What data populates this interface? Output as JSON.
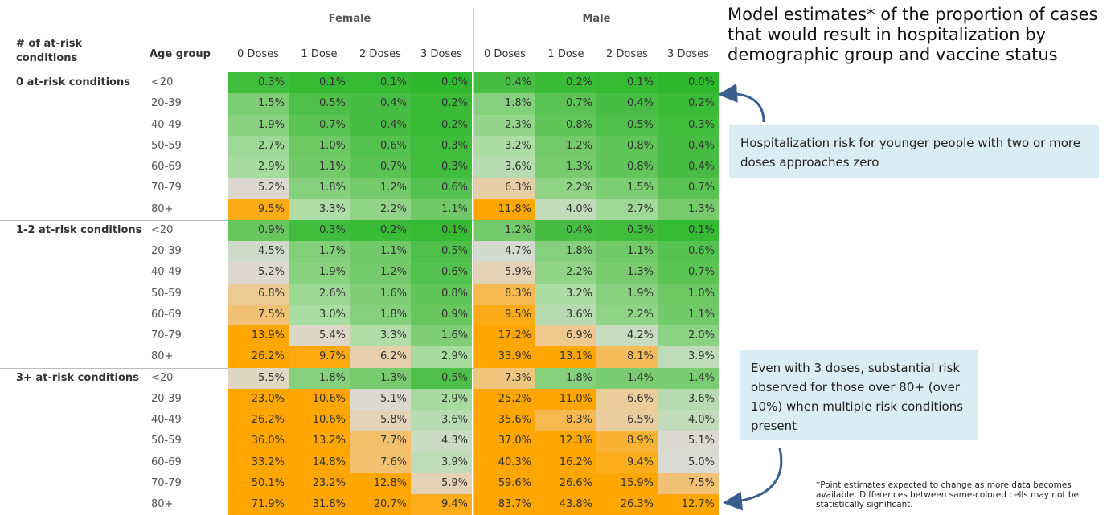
{
  "header": {
    "title": "Model estimates* of the proportion of cases that would result in hospitalization by demographic group and vaccine status"
  },
  "table": {
    "group_headers": [
      "Female",
      "Male"
    ],
    "columns": [
      "# of at-risk conditions",
      "Age group",
      "0 Doses",
      "1 Dose",
      "2 Doses",
      "3 Doses",
      "0 Doses",
      "1 Dose",
      "2 Doses",
      "3 Doses"
    ],
    "groups": [
      {
        "label": "0 at-risk conditions",
        "rows": [
          [
            "<20",
            "0.3%",
            "0.1%",
            "0.1%",
            "0.0%",
            "0.4%",
            "0.2%",
            "0.1%",
            "0.0%"
          ],
          [
            "20-39",
            "1.5%",
            "0.5%",
            "0.4%",
            "0.2%",
            "1.8%",
            "0.7%",
            "0.4%",
            "0.2%"
          ],
          [
            "40-49",
            "1.9%",
            "0.7%",
            "0.4%",
            "0.2%",
            "2.3%",
            "0.8%",
            "0.5%",
            "0.3%"
          ],
          [
            "50-59",
            "2.7%",
            "1.0%",
            "0.6%",
            "0.3%",
            "3.2%",
            "1.2%",
            "0.8%",
            "0.4%"
          ],
          [
            "60-69",
            "2.9%",
            "1.1%",
            "0.7%",
            "0.3%",
            "3.6%",
            "1.3%",
            "0.8%",
            "0.4%"
          ],
          [
            "70-79",
            "5.2%",
            "1.8%",
            "1.2%",
            "0.6%",
            "6.3%",
            "2.2%",
            "1.5%",
            "0.7%"
          ],
          [
            "80+",
            "9.5%",
            "3.3%",
            "2.2%",
            "1.1%",
            "11.8%",
            "4.0%",
            "2.7%",
            "1.3%"
          ]
        ]
      },
      {
        "label": "1-2 at-risk conditions",
        "rows": [
          [
            "<20",
            "0.9%",
            "0.3%",
            "0.2%",
            "0.1%",
            "1.2%",
            "0.4%",
            "0.3%",
            "0.1%"
          ],
          [
            "20-39",
            "4.5%",
            "1.7%",
            "1.1%",
            "0.5%",
            "4.7%",
            "1.8%",
            "1.1%",
            "0.6%"
          ],
          [
            "40-49",
            "5.2%",
            "1.9%",
            "1.2%",
            "0.6%",
            "5.9%",
            "2.2%",
            "1.3%",
            "0.7%"
          ],
          [
            "50-59",
            "6.8%",
            "2.6%",
            "1.6%",
            "0.8%",
            "8.3%",
            "3.2%",
            "1.9%",
            "1.0%"
          ],
          [
            "60-69",
            "7.5%",
            "3.0%",
            "1.8%",
            "0.9%",
            "9.5%",
            "3.6%",
            "2.2%",
            "1.1%"
          ],
          [
            "70-79",
            "13.9%",
            "5.4%",
            "3.3%",
            "1.6%",
            "17.2%",
            "6.9%",
            "4.2%",
            "2.0%"
          ],
          [
            "80+",
            "26.2%",
            "9.7%",
            "6.2%",
            "2.9%",
            "33.9%",
            "13.1%",
            "8.1%",
            "3.9%"
          ]
        ]
      },
      {
        "label": "3+ at-risk conditions",
        "rows": [
          [
            "<20",
            "5.5%",
            "1.8%",
            "1.3%",
            "0.5%",
            "7.3%",
            "1.8%",
            "1.4%",
            "1.4%"
          ],
          [
            "20-39",
            "23.0%",
            "10.6%",
            "5.1%",
            "2.9%",
            "25.2%",
            "11.0%",
            "6.6%",
            "3.6%"
          ],
          [
            "40-49",
            "26.2%",
            "10.6%",
            "5.8%",
            "3.6%",
            "35.6%",
            "8.3%",
            "6.5%",
            "4.0%"
          ],
          [
            "50-59",
            "36.0%",
            "13.2%",
            "7.7%",
            "4.3%",
            "37.0%",
            "12.3%",
            "8.9%",
            "5.1%"
          ],
          [
            "60-69",
            "33.2%",
            "14.8%",
            "7.6%",
            "3.9%",
            "40.3%",
            "16.2%",
            "9.4%",
            "5.0%"
          ],
          [
            "70-79",
            "50.1%",
            "23.2%",
            "12.8%",
            "5.9%",
            "59.6%",
            "26.6%",
            "15.9%",
            "7.5%"
          ],
          [
            "80+",
            "71.9%",
            "31.8%",
            "20.7%",
            "9.4%",
            "83.7%",
            "43.8%",
            "26.3%",
            "12.7%"
          ]
        ]
      }
    ]
  },
  "callouts": [
    "Hospitalization risk for younger people with two or more doses approaches zero",
    "Even with 3 doses, substantial risk observed for those over 80+ (over 10%) when multiple risk conditions present"
  ],
  "footnote": "*Point estimates expected to change as more data becomes available. Differences between same-colored cells may not be statistically significant."
}
